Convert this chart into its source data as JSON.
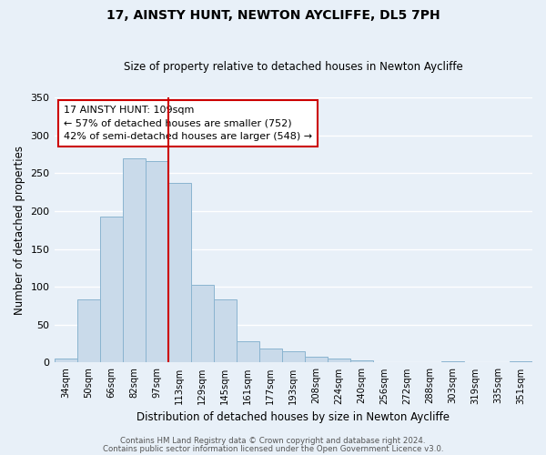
{
  "title": "17, AINSTY HUNT, NEWTON AYCLIFFE, DL5 7PH",
  "subtitle": "Size of property relative to detached houses in Newton Aycliffe",
  "xlabel": "Distribution of detached houses by size in Newton Aycliffe",
  "ylabel": "Number of detached properties",
  "categories": [
    "34sqm",
    "50sqm",
    "66sqm",
    "82sqm",
    "97sqm",
    "113sqm",
    "129sqm",
    "145sqm",
    "161sqm",
    "177sqm",
    "193sqm",
    "208sqm",
    "224sqm",
    "240sqm",
    "256sqm",
    "272sqm",
    "288sqm",
    "303sqm",
    "319sqm",
    "335sqm",
    "351sqm"
  ],
  "values": [
    5,
    83,
    193,
    270,
    266,
    237,
    103,
    84,
    28,
    18,
    15,
    8,
    5,
    3,
    1,
    1,
    0,
    2,
    1,
    0,
    2
  ],
  "bar_color": "#c9daea",
  "bar_edge_color": "#8ab4d0",
  "vline_color": "#cc0000",
  "annotation_title": "17 AINSTY HUNT: 109sqm",
  "annotation_line1": "← 57% of detached houses are smaller (752)",
  "annotation_line2": "42% of semi-detached houses are larger (548) →",
  "annotation_box_color": "#cc0000",
  "ylim": [
    0,
    350
  ],
  "bg_color": "#e8f0f8",
  "footer1": "Contains HM Land Registry data © Crown copyright and database right 2024.",
  "footer2": "Contains public sector information licensed under the Open Government Licence v3.0."
}
